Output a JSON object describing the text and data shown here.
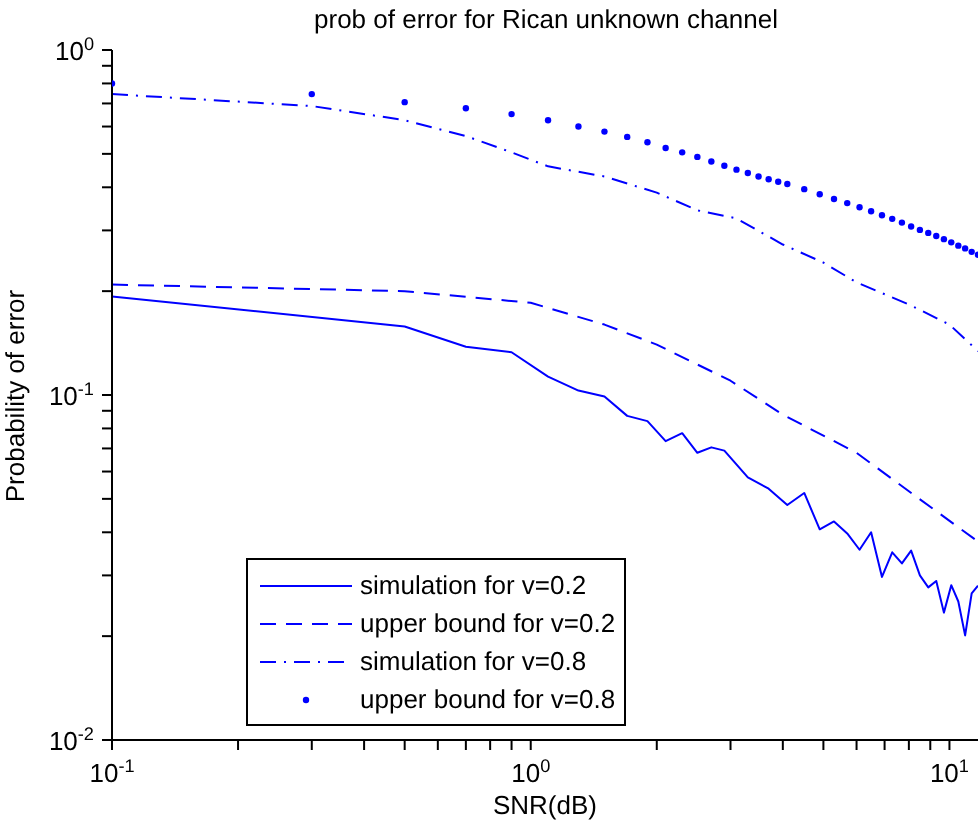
{
  "chart_data": {
    "type": "line",
    "title": "prob of error for Rican unknown channel",
    "xlabel": "SNR(dB)",
    "ylabel": "Probability of error",
    "log": "xy",
    "grid": false,
    "legend": "bottom left",
    "xlim": [
      0.1,
      11.7
    ],
    "ylim": [
      0.01,
      1
    ],
    "xticks": [
      {
        "value": 0.1,
        "label": "10$^{-1}$"
      },
      {
        "value": 0.2,
        "label": null
      },
      {
        "value": 0.3,
        "label": null
      },
      {
        "value": 0.4,
        "label": null
      },
      {
        "value": 0.5,
        "label": null
      },
      {
        "value": 0.6,
        "label": null
      },
      {
        "value": 0.7,
        "label": null
      },
      {
        "value": 0.8,
        "label": null
      },
      {
        "value": 0.9,
        "label": null
      },
      {
        "value": 1,
        "label": "10$^{0}$"
      },
      {
        "value": 2,
        "label": null
      },
      {
        "value": 3,
        "label": null
      },
      {
        "value": 4,
        "label": null
      },
      {
        "value": 5,
        "label": null
      },
      {
        "value": 6,
        "label": null
      },
      {
        "value": 7,
        "label": null
      },
      {
        "value": 8,
        "label": null
      },
      {
        "value": 9,
        "label": null
      },
      {
        "value": 10,
        "label": "10$^{1}$"
      }
    ],
    "yticks": [
      {
        "value": 0.01,
        "label": "10$^{-2}$"
      },
      {
        "value": 0.02,
        "label": null
      },
      {
        "value": 0.03,
        "label": null
      },
      {
        "value": 0.04,
        "label": null
      },
      {
        "value": 0.05,
        "label": null
      },
      {
        "value": 0.06,
        "label": null
      },
      {
        "value": 0.07,
        "label": null
      },
      {
        "value": 0.08,
        "label": null
      },
      {
        "value": 0.09,
        "label": null
      },
      {
        "value": 0.1,
        "label": "10$^{-1}$"
      },
      {
        "value": 0.2,
        "label": null
      },
      {
        "value": 0.3,
        "label": null
      },
      {
        "value": 0.4,
        "label": null
      },
      {
        "value": 0.5,
        "label": null
      },
      {
        "value": 0.6,
        "label": null
      },
      {
        "value": 0.7,
        "label": null
      },
      {
        "value": 0.8,
        "label": null
      },
      {
        "value": 0.9,
        "label": null
      },
      {
        "value": 1,
        "label": "10$^{0}$"
      }
    ],
    "series": [
      {
        "name": "simulation for v=0.2",
        "line_style": "solid",
        "marker": "none",
        "color": "#0000ff",
        "x": [
          0.1,
          0.5,
          0.7,
          0.9,
          1.1,
          1.3,
          1.5,
          1.7,
          1.9,
          2.1,
          2.3,
          2.5,
          2.7,
          2.9,
          3.3,
          3.7,
          4.1,
          4.5,
          4.9,
          5.3,
          5.7,
          6.1,
          6.5,
          6.9,
          7.3,
          7.7,
          8.1,
          8.5,
          8.9,
          9.3,
          9.7,
          10.1,
          10.5,
          10.9,
          11.3,
          11.7
        ],
        "values": [
          0.193,
          0.158,
          0.138,
          0.133,
          0.113,
          0.103,
          0.099,
          0.087,
          0.084,
          0.0735,
          0.0775,
          0.068,
          0.0705,
          0.069,
          0.0577,
          0.0535,
          0.048,
          0.052,
          0.0408,
          0.043,
          0.0397,
          0.0356,
          0.04,
          0.0297,
          0.035,
          0.0325,
          0.0354,
          0.03,
          0.0277,
          0.0289,
          0.0234,
          0.0281,
          0.0252,
          0.0201,
          0.0266,
          0.028
        ]
      },
      {
        "name": "upper bound for v=0.2",
        "line_style": "dashed",
        "marker": "none",
        "color": "#0000ff",
        "x": [
          0.1,
          0.5,
          1,
          1.5,
          2,
          3,
          4,
          6,
          8,
          11.7
        ],
        "values": [
          0.209,
          0.2,
          0.185,
          0.16,
          0.14,
          0.11,
          0.0877,
          0.068,
          0.0526,
          0.0376
        ]
      },
      {
        "name": "simulation for v=0.8",
        "line_style": "dashdot",
        "marker": "none",
        "color": "#0000ff",
        "x": [
          0.1,
          0.3,
          0.5,
          0.7,
          0.9,
          1.1,
          1.5,
          2,
          2.5,
          3.1,
          4,
          5,
          6,
          8,
          10,
          11.7
        ],
        "values": [
          0.745,
          0.688,
          0.626,
          0.563,
          0.505,
          0.46,
          0.43,
          0.386,
          0.343,
          0.325,
          0.273,
          0.242,
          0.212,
          0.183,
          0.16,
          0.134
        ]
      },
      {
        "name": "upper bound for v=0.8",
        "type": "scatter",
        "marker": "circle",
        "color": "#0000ff",
        "x": [
          0.1,
          0.3,
          0.5,
          0.7,
          0.9,
          1.1,
          1.3,
          1.5,
          1.7,
          1.9,
          2.1,
          2.3,
          2.5,
          2.7,
          2.9,
          3.1,
          3.3,
          3.5,
          3.7,
          3.9,
          4.1,
          4.5,
          4.9,
          5.3,
          5.7,
          6.1,
          6.5,
          6.9,
          7.3,
          7.7,
          8.1,
          8.5,
          8.9,
          9.3,
          9.7,
          10.1,
          10.5,
          10.9,
          11.3,
          11.7
        ],
        "values": [
          0.8,
          0.745,
          0.706,
          0.678,
          0.652,
          0.626,
          0.6,
          0.58,
          0.56,
          0.54,
          0.52,
          0.505,
          0.49,
          0.475,
          0.462,
          0.45,
          0.44,
          0.43,
          0.422,
          0.415,
          0.409,
          0.395,
          0.382,
          0.37,
          0.36,
          0.35,
          0.341,
          0.332,
          0.324,
          0.316,
          0.308,
          0.301,
          0.295,
          0.289,
          0.283,
          0.277,
          0.271,
          0.266,
          0.26,
          0.255
        ]
      }
    ]
  }
}
